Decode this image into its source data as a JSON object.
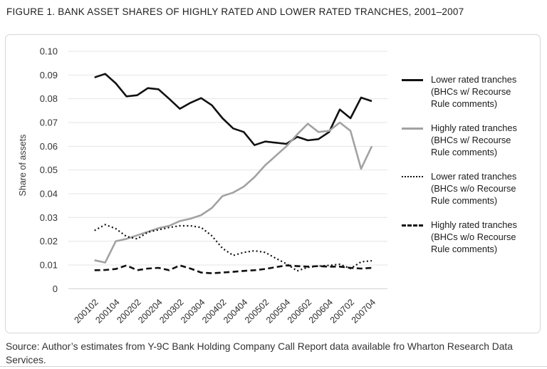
{
  "header": {
    "title": "FIGURE 1. BANK ASSET SHARES OF HIGHLY RATED AND LOWER RATED TRANCHES, 2001–2007"
  },
  "source": {
    "text": "Source: Author’s estimates from Y-9C Bank Holding Company Call Report data available fro Wharton Research Data Services."
  },
  "chart_data": {
    "type": "line",
    "title": "FIGURE 1. BANK ASSET SHARES OF HIGHLY RATED AND LOWER RATED TRANCHES, 2001–2007",
    "xlabel": "",
    "ylabel": "Share of assets",
    "ylim": [
      0,
      0.1
    ],
    "grid": "horizontal",
    "legend_position": "right",
    "ytick_values": [
      0,
      0.01,
      0.02,
      0.03,
      0.04,
      0.05,
      0.06,
      0.07,
      0.08,
      0.09,
      0.1
    ],
    "ytick_labels": [
      "0",
      "0.01",
      "0.02",
      "0.03",
      "0.04",
      "0.05",
      "0.06",
      "0.07",
      "0.08",
      "0.09",
      "0.10"
    ],
    "x_categories": [
      "200102",
      "200103",
      "200104",
      "200201",
      "200202",
      "200203",
      "200204",
      "200301",
      "200302",
      "200303",
      "200304",
      "200401",
      "200402",
      "200403",
      "200404",
      "200501",
      "200502",
      "200503",
      "200504",
      "200601",
      "200602",
      "200603",
      "200604",
      "200701",
      "200702",
      "200703",
      "200704"
    ],
    "xtick_labels": [
      "200102",
      "200104",
      "200202",
      "200204",
      "200302",
      "200304",
      "200402",
      "200404",
      "200502",
      "200504",
      "200602",
      "200604",
      "200702",
      "200704"
    ],
    "series": [
      {
        "name": "Lower rated tranches (BHCs w/ Recourse Rule comments)",
        "style": "solid",
        "color": "#111111",
        "width": 2.6,
        "values": [
          0.089,
          0.0905,
          0.0865,
          0.081,
          0.0815,
          0.0845,
          0.084,
          0.08,
          0.0758,
          0.0783,
          0.0803,
          0.0773,
          0.0718,
          0.0675,
          0.066,
          0.0605,
          0.062,
          0.0615,
          0.061,
          0.064,
          0.0625,
          0.063,
          0.066,
          0.0755,
          0.0718,
          0.0805,
          0.079
        ]
      },
      {
        "name": "Highly rated tranches (BHCs w/ Recourse Rule comments)",
        "style": "solid",
        "color": "#a2a2a2",
        "width": 2.6,
        "values": [
          0.012,
          0.011,
          0.02,
          0.021,
          0.0225,
          0.024,
          0.0255,
          0.0265,
          0.0285,
          0.0295,
          0.031,
          0.034,
          0.039,
          0.0405,
          0.043,
          0.047,
          0.052,
          0.056,
          0.06,
          0.065,
          0.0695,
          0.066,
          0.0665,
          0.07,
          0.0665,
          0.0505,
          0.06
        ]
      },
      {
        "name": "Lower rated tranches (BHCs w/o Recourse Rule comments)",
        "style": "dotted",
        "color": "#111111",
        "width": 2.2,
        "values": [
          0.0245,
          0.027,
          0.0253,
          0.022,
          0.021,
          0.0238,
          0.0248,
          0.0258,
          0.0265,
          0.0265,
          0.0258,
          0.0223,
          0.017,
          0.014,
          0.0153,
          0.016,
          0.0153,
          0.0128,
          0.0105,
          0.0075,
          0.009,
          0.0095,
          0.0098,
          0.0103,
          0.0085,
          0.0113,
          0.0118
        ]
      },
      {
        "name": "Highly rated tranches (BHCs w/o Recourse Rule comments)",
        "style": "dashed",
        "color": "#111111",
        "width": 2.6,
        "values": [
          0.0078,
          0.0079,
          0.0083,
          0.0098,
          0.0078,
          0.0085,
          0.0088,
          0.0078,
          0.0098,
          0.0085,
          0.0068,
          0.0065,
          0.0068,
          0.0071,
          0.0075,
          0.0078,
          0.0083,
          0.0091,
          0.0098,
          0.0095,
          0.0093,
          0.0095,
          0.0093,
          0.0093,
          0.0088,
          0.0085,
          0.0088
        ]
      }
    ],
    "legend": [
      {
        "label_lines": [
          "Lower rated tranches",
          "(BHCs w/ Recourse",
          "Rule comments)"
        ],
        "style": "solid",
        "color": "#111111"
      },
      {
        "label_lines": [
          "Highly rated tranches",
          "(BHCs w/ Recourse",
          "Rule comments)"
        ],
        "style": "solid",
        "color": "#a2a2a2"
      },
      {
        "label_lines": [
          "Lower rated tranches",
          "(BHCs w/o Recourse",
          "Rule comments)"
        ],
        "style": "dotted",
        "color": "#111111"
      },
      {
        "label_lines": [
          "Highly rated tranches",
          "(BHCs w/o Recourse",
          "Rule comments)"
        ],
        "style": "dashed",
        "color": "#111111"
      }
    ]
  }
}
